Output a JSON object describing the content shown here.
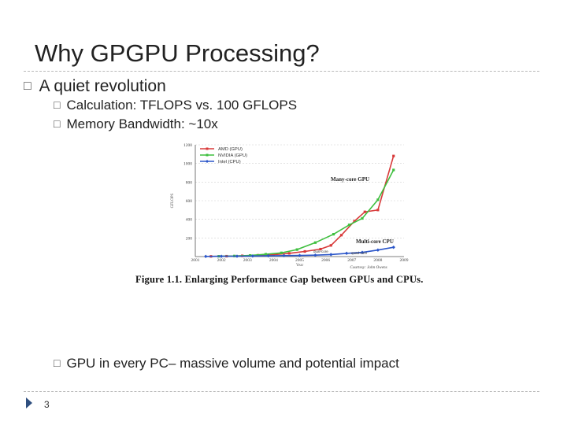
{
  "slide": {
    "title": "Why GPGPU Processing?",
    "bullet_main": "A quiet revolution",
    "sub_bullets": [
      "Calculation: TFLOPS vs. 100 GFLOPS",
      "Memory Bandwidth: ~10x"
    ],
    "bottom_bullet": "GPU in every PC– massive volume and potential impact",
    "bullet_glyph": "□",
    "page_number": "3"
  },
  "figure": {
    "caption": "Figure 1.1. Enlarging Performance Gap between GPUs and CPUs.",
    "courtesy": "Courtesy: John Owens",
    "annotation_gpu": "Many-core GPU",
    "annotation_cpu": "Multi-core CPU",
    "annotation_dual": "dual-core",
    "annotation_quad": "quad-core"
  },
  "chart_data": {
    "type": "line",
    "title": "",
    "xlabel": "Year",
    "ylabel": "GFLOPS",
    "xlim": [
      2001,
      2009
    ],
    "ylim": [
      0,
      1200
    ],
    "x_ticks": [
      "2001",
      "2002",
      "2003",
      "2004",
      "2005",
      "2006",
      "2007",
      "2008",
      "2009"
    ],
    "y_ticks": [
      "200",
      "400",
      "600",
      "800",
      "1000",
      "1200"
    ],
    "legend_position": "top-left",
    "series": [
      {
        "name": "AMD (GPU)",
        "color": "#d83a3a",
        "x": [
          2001.6,
          2002.2,
          2002.8,
          2003.4,
          2004.0,
          2004.6,
          2005.2,
          2005.8,
          2006.2,
          2006.6,
          2007.1,
          2007.5,
          2008.0,
          2008.6
        ],
        "y": [
          2,
          4,
          8,
          14,
          20,
          35,
          55,
          80,
          120,
          230,
          380,
          480,
          500,
          1080
        ]
      },
      {
        "name": "NVIDIA (GPU)",
        "color": "#3fbf3f",
        "x": [
          2001.9,
          2002.5,
          2003.1,
          2003.7,
          2004.3,
          2004.9,
          2005.6,
          2006.3,
          2006.9,
          2007.4,
          2008.0,
          2008.6
        ],
        "y": [
          3,
          6,
          12,
          25,
          40,
          75,
          150,
          240,
          340,
          410,
          610,
          930
        ]
      },
      {
        "name": "Intel (CPU)",
        "color": "#2b56c9",
        "x": [
          2001.4,
          2002.0,
          2002.6,
          2003.2,
          2003.8,
          2004.4,
          2005.0,
          2005.6,
          2006.2,
          2006.8,
          2007.4,
          2008.0,
          2008.6
        ],
        "y": [
          2,
          3,
          4,
          6,
          8,
          10,
          12,
          15,
          22,
          35,
          45,
          70,
          100
        ]
      }
    ]
  }
}
